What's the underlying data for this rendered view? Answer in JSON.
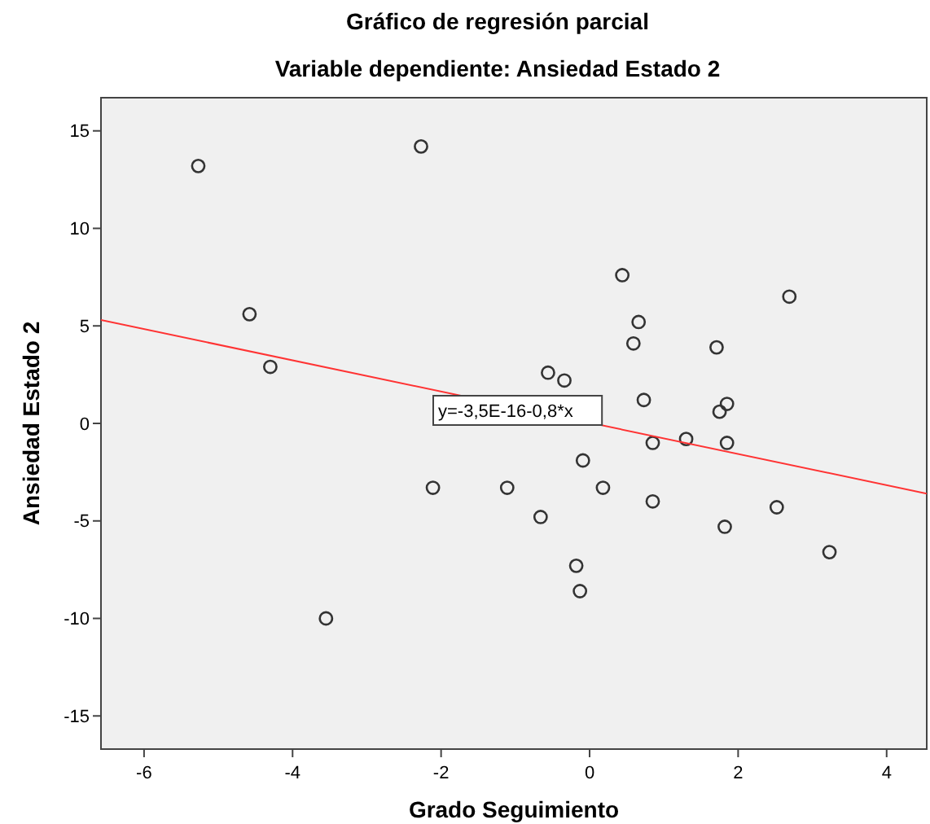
{
  "chart_data": {
    "type": "scatter",
    "title": "Gráfico de regresión parcial",
    "subtitle": "Variable dependiente: Ansiedad Estado 2",
    "xlabel": "Grado Seguimiento",
    "ylabel": "Ansiedad Estado 2",
    "xlim": [
      -6.58,
      4.54
    ],
    "ylim": [
      -16.7,
      16.7
    ],
    "xticks": [
      -6,
      -4,
      -2,
      0,
      2,
      4
    ],
    "yticks": [
      -15,
      -10,
      -5,
      0,
      5,
      10,
      15
    ],
    "grid": false,
    "annotations": [
      "y=-3,5E-16-0,8*x"
    ],
    "series": [
      {
        "marker": "circle",
        "color": "#333333",
        "x": [
          -5.27,
          -2.27,
          -4.58,
          -4.3,
          0.44,
          2.69,
          0.66,
          0.59,
          1.71,
          -0.56,
          -0.34,
          0.73,
          1.85,
          1.75,
          1.3,
          0.85,
          1.85,
          -0.09,
          -1.11,
          0.18,
          0.85,
          -0.66,
          1.82,
          2.52,
          3.23,
          -0.18,
          -0.13,
          -2.11,
          -3.55
        ],
        "values": [
          13.2,
          14.2,
          5.6,
          2.9,
          7.6,
          6.5,
          5.2,
          4.1,
          3.9,
          2.6,
          2.2,
          1.2,
          1.0,
          0.6,
          -0.8,
          -1.0,
          -1.0,
          -1.9,
          -3.3,
          -3.3,
          -4.0,
          -4.8,
          -5.3,
          -4.3,
          -6.6,
          -7.3,
          -8.6,
          -3.3,
          -10.0
        ]
      },
      {
        "type": "line",
        "marker": "none",
        "color": "#ff3333",
        "x": [
          -6.58,
          4.54
        ],
        "values": [
          5.3,
          -3.6
        ]
      }
    ]
  }
}
